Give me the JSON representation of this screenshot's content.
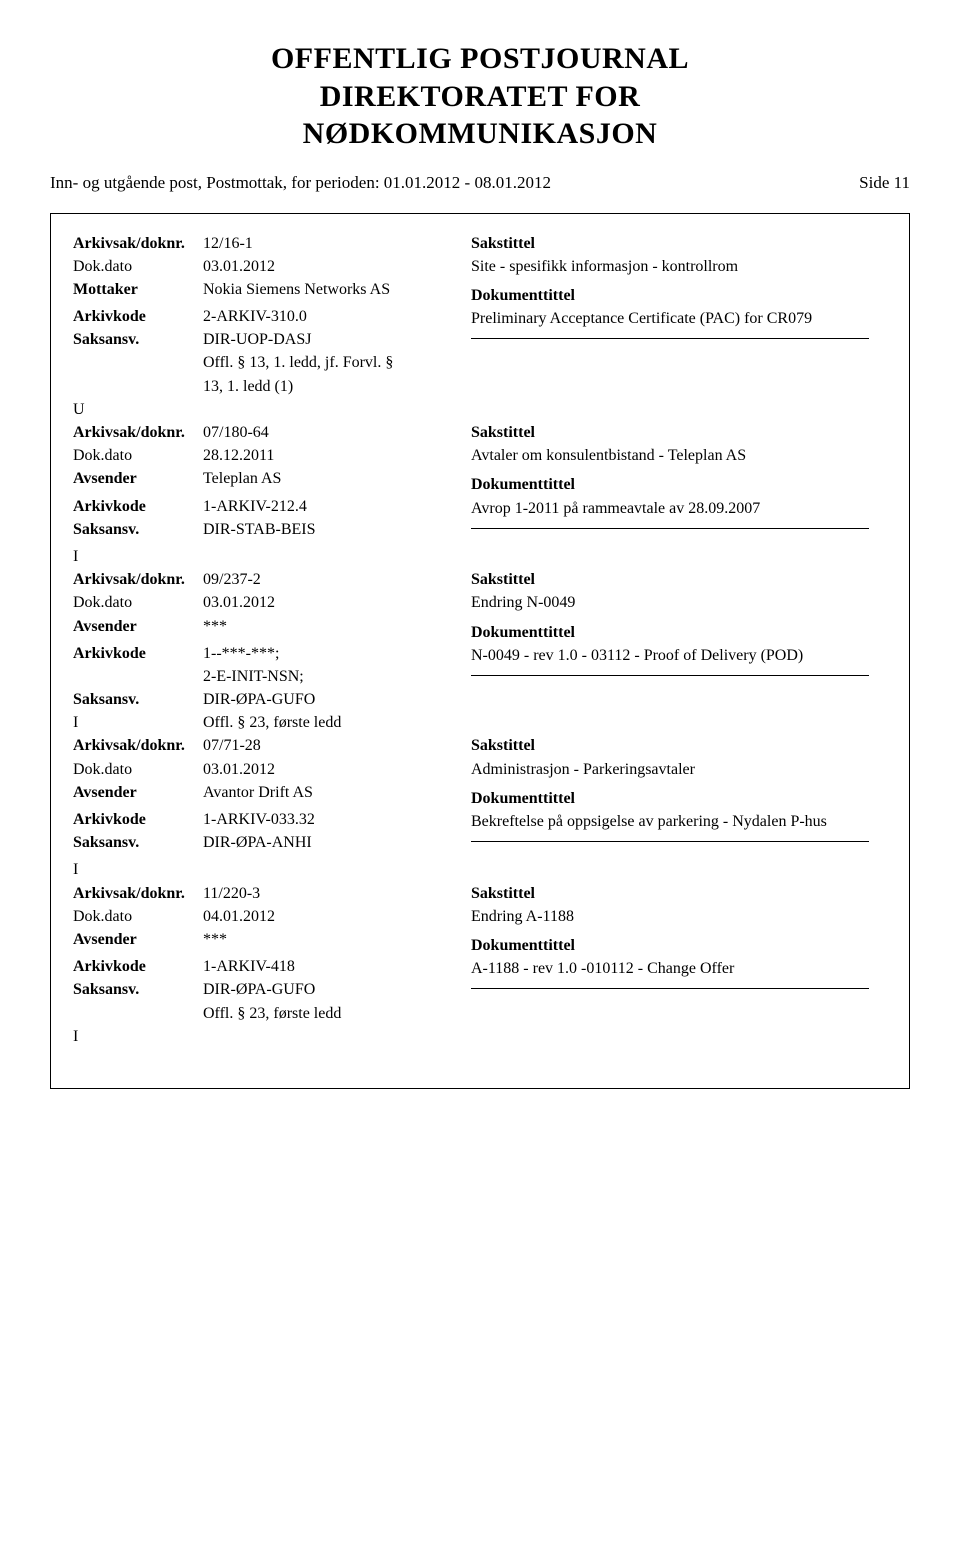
{
  "title_line1": "OFFENTLIG POSTJOURNAL",
  "title_line2": "DIREKTORATET FOR",
  "title_line3": "NØDKOMMUNIKASJON",
  "subheader_left": "Inn- og utgående post, Postmottak, for perioden: 01.01.2012 - 08.01.2012",
  "subheader_right": "Side 11",
  "labels": {
    "arkivsak": "Arkivsak/doknr.",
    "dokdato": "Dok.dato",
    "mottaker": "Mottaker",
    "avsender": "Avsender",
    "arkivkode": "Arkivkode",
    "saksansv": "Saksansv.",
    "sakstittel": "Sakstittel",
    "dokumenttittel": "Dokumenttittel"
  },
  "entries": [
    {
      "arkivsak": "12/16-1",
      "dokdato": "03.01.2012",
      "party_label": "Mottaker",
      "party": "Nokia Siemens Networks AS",
      "arkivkode": "2-ARKIV-310.0",
      "saksansv": "DIR-UOP-DASJ",
      "extra_lines": [
        "Offl. § 13, 1. ledd, jf. Forvl. §",
        "13, 1. ledd (1)"
      ],
      "flag": "U",
      "sakstittel": "Site - spesifikk informasjon - kontrollrom",
      "doktittel": "Preliminary Acceptance Certificate (PAC) for CR079"
    },
    {
      "arkivsak": "07/180-64",
      "dokdato": "28.12.2011",
      "party_label": "Avsender",
      "party": "Teleplan AS",
      "arkivkode": "1-ARKIV-212.4",
      "saksansv": "DIR-STAB-BEIS",
      "extra_lines": [],
      "flag": "I",
      "sakstittel": "Avtaler om konsulentbistand - Teleplan AS",
      "doktittel": "Avrop 1-2011 på rammeavtale av 28.09.2007"
    },
    {
      "arkivsak": "09/237-2",
      "dokdato": "03.01.2012",
      "party_label": "Avsender",
      "party": "***",
      "arkivkode": "1--***-***;",
      "arkivkode_extra": "2-E-INIT-NSN;",
      "saksansv": "DIR-ØPA-GUFO",
      "extra_lines": [
        "Offl. § 23, første ledd"
      ],
      "flag": "I",
      "flag_inline": true,
      "sakstittel": "Endring N-0049",
      "doktittel": "N-0049 - rev 1.0 - 03112 - Proof of Delivery (POD)"
    },
    {
      "arkivsak": "07/71-28",
      "dokdato": "03.01.2012",
      "party_label": "Avsender",
      "party": "Avantor Drift AS",
      "arkivkode": "1-ARKIV-033.32",
      "saksansv": "DIR-ØPA-ANHI",
      "extra_lines": [],
      "flag": "I",
      "sakstittel": "Administrasjon - Parkeringsavtaler",
      "doktittel": "Bekreftelse på oppsigelse av parkering - Nydalen P-hus"
    },
    {
      "arkivsak": "11/220-3",
      "dokdato": "04.01.2012",
      "party_label": "Avsender",
      "party": "***",
      "arkivkode": "1-ARKIV-418",
      "saksansv": "DIR-ØPA-GUFO",
      "extra_lines": [
        "Offl. § 23, første ledd"
      ],
      "flag": "I",
      "sakstittel": "Endring A-1188",
      "doktittel": "A-1188 - rev 1.0 -010112 -   Change Offer"
    }
  ]
}
